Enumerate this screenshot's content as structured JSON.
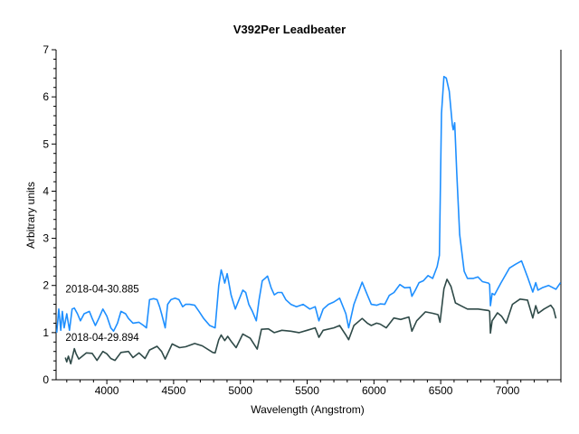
{
  "chart_data": {
    "type": "line",
    "title": "V392Per   Leadbeater",
    "xlabel": "Wavelength (Angstrom)",
    "ylabel": "Arbitrary units",
    "xlim": [
      3620,
      7400
    ],
    "ylim": [
      0,
      7
    ],
    "xticks": [
      4000,
      4500,
      5000,
      5500,
      6000,
      6500,
      7000
    ],
    "yticks": [
      0,
      1,
      2,
      3,
      4,
      5,
      6,
      7
    ],
    "grid": false,
    "series": [
      {
        "name": "2018-04-30.885",
        "color": "#1e8fff",
        "x": [
          3625,
          3640,
          3655,
          3667,
          3680,
          3700,
          3720,
          3740,
          3757,
          3780,
          3802,
          3830,
          3869,
          3890,
          3914,
          3940,
          3970,
          4000,
          4030,
          4050,
          4080,
          4106,
          4140,
          4162,
          4196,
          4240,
          4275,
          4297,
          4320,
          4350,
          4376,
          4395,
          4410,
          4437,
          4455,
          4480,
          4511,
          4540,
          4568,
          4590,
          4620,
          4658,
          4690,
          4725,
          4770,
          4811,
          4838,
          4856,
          4870,
          4883,
          4901,
          4930,
          4962,
          4990,
          5018,
          5040,
          5063,
          5090,
          5119,
          5140,
          5164,
          5185,
          5203,
          5230,
          5254,
          5280,
          5311,
          5340,
          5378,
          5420,
          5470,
          5520,
          5560,
          5588,
          5620,
          5660,
          5700,
          5743,
          5790,
          5811,
          5850,
          5912,
          5950,
          5980,
          6020,
          6047,
          6081,
          6115,
          6150,
          6194,
          6230,
          6270,
          6284,
          6310,
          6338,
          6370,
          6405,
          6440,
          6473,
          6490,
          6506,
          6524,
          6542,
          6564,
          6587,
          6594,
          6605,
          6620,
          6642,
          6676,
          6700,
          6745,
          6779,
          6813,
          6858,
          6866,
          6872,
          6885,
          6903,
          6950,
          7015,
          7060,
          7105,
          7150,
          7189,
          7212,
          7228,
          7260,
          7307,
          7363,
          7397
        ],
        "y": [
          1.0,
          1.5,
          1.05,
          1.45,
          1.1,
          1.4,
          1.05,
          1.5,
          1.52,
          1.4,
          1.25,
          1.4,
          1.45,
          1.3,
          1.15,
          1.3,
          1.5,
          1.35,
          1.1,
          1.03,
          1.2,
          1.45,
          1.4,
          1.3,
          1.2,
          1.22,
          1.15,
          1.1,
          1.7,
          1.72,
          1.7,
          1.55,
          1.4,
          1.1,
          1.6,
          1.7,
          1.73,
          1.7,
          1.55,
          1.6,
          1.6,
          1.58,
          1.45,
          1.3,
          1.15,
          1.1,
          2.0,
          2.33,
          2.2,
          2.05,
          2.25,
          1.8,
          1.5,
          1.7,
          1.9,
          1.85,
          1.6,
          1.45,
          1.25,
          1.7,
          2.1,
          2.15,
          2.2,
          1.95,
          1.8,
          1.85,
          1.85,
          1.7,
          1.6,
          1.55,
          1.6,
          1.5,
          1.55,
          1.25,
          1.5,
          1.6,
          1.65,
          1.73,
          1.4,
          1.1,
          1.6,
          2.07,
          1.8,
          1.6,
          1.58,
          1.61,
          1.6,
          1.79,
          1.85,
          2.02,
          1.95,
          1.96,
          1.77,
          1.9,
          2.06,
          2.1,
          2.21,
          2.15,
          2.4,
          2.64,
          5.65,
          6.43,
          6.4,
          6.12,
          5.4,
          5.3,
          5.45,
          4.38,
          3.08,
          2.3,
          2.15,
          2.15,
          2.18,
          2.08,
          2.05,
          2.02,
          1.57,
          1.83,
          1.8,
          2.05,
          2.37,
          2.45,
          2.52,
          2.18,
          1.86,
          2.06,
          1.9,
          1.95,
          2.0,
          1.92,
          2.06
        ]
      },
      {
        "name": "2018-04-29.894",
        "color": "#2f4a48",
        "x": [
          3689,
          3700,
          3712,
          3730,
          3757,
          3770,
          3790,
          3847,
          3890,
          3926,
          3970,
          4000,
          4030,
          4061,
          4106,
          4162,
          4196,
          4241,
          4286,
          4320,
          4376,
          4410,
          4437,
          4489,
          4545,
          4590,
          4658,
          4715,
          4793,
          4811,
          4838,
          4856,
          4883,
          4905,
          4935,
          4968,
          5018,
          5074,
          5126,
          5158,
          5209,
          5254,
          5311,
          5378,
          5440,
          5500,
          5560,
          5588,
          5620,
          5700,
          5743,
          5790,
          5811,
          5850,
          5912,
          5950,
          5980,
          6020,
          6047,
          6092,
          6149,
          6200,
          6261,
          6284,
          6320,
          6385,
          6440,
          6480,
          6495,
          6524,
          6547,
          6577,
          6610,
          6650,
          6700,
          6780,
          6858,
          6866,
          6872,
          6885,
          6925,
          6955,
          6990,
          7037,
          7094,
          7150,
          7189,
          7212,
          7230,
          7273,
          7324,
          7345,
          7363
        ],
        "y": [
          0.47,
          0.38,
          0.5,
          0.34,
          0.66,
          0.55,
          0.44,
          0.57,
          0.56,
          0.41,
          0.6,
          0.55,
          0.45,
          0.41,
          0.58,
          0.6,
          0.47,
          0.57,
          0.45,
          0.63,
          0.71,
          0.6,
          0.44,
          0.76,
          0.68,
          0.7,
          0.77,
          0.72,
          0.58,
          0.57,
          0.85,
          0.95,
          0.83,
          0.92,
          0.8,
          0.68,
          0.97,
          0.88,
          0.65,
          1.07,
          1.08,
          1.0,
          1.05,
          1.03,
          1.0,
          1.05,
          1.1,
          0.9,
          1.05,
          1.1,
          1.15,
          0.95,
          0.85,
          1.15,
          1.3,
          1.2,
          1.15,
          1.2,
          1.18,
          1.1,
          1.31,
          1.28,
          1.33,
          1.03,
          1.25,
          1.44,
          1.41,
          1.38,
          1.22,
          1.93,
          2.13,
          1.98,
          1.63,
          1.57,
          1.5,
          1.5,
          1.47,
          1.45,
          0.99,
          1.25,
          1.42,
          1.35,
          1.2,
          1.6,
          1.71,
          1.69,
          1.31,
          1.57,
          1.41,
          1.5,
          1.58,
          1.5,
          1.3
        ]
      }
    ],
    "annotations": [
      {
        "text": "2018-04-30.885",
        "x": 3650,
        "y": 1.85
      },
      {
        "text": "2018-04-29.894",
        "x": 3650,
        "y": 0.82
      }
    ]
  }
}
